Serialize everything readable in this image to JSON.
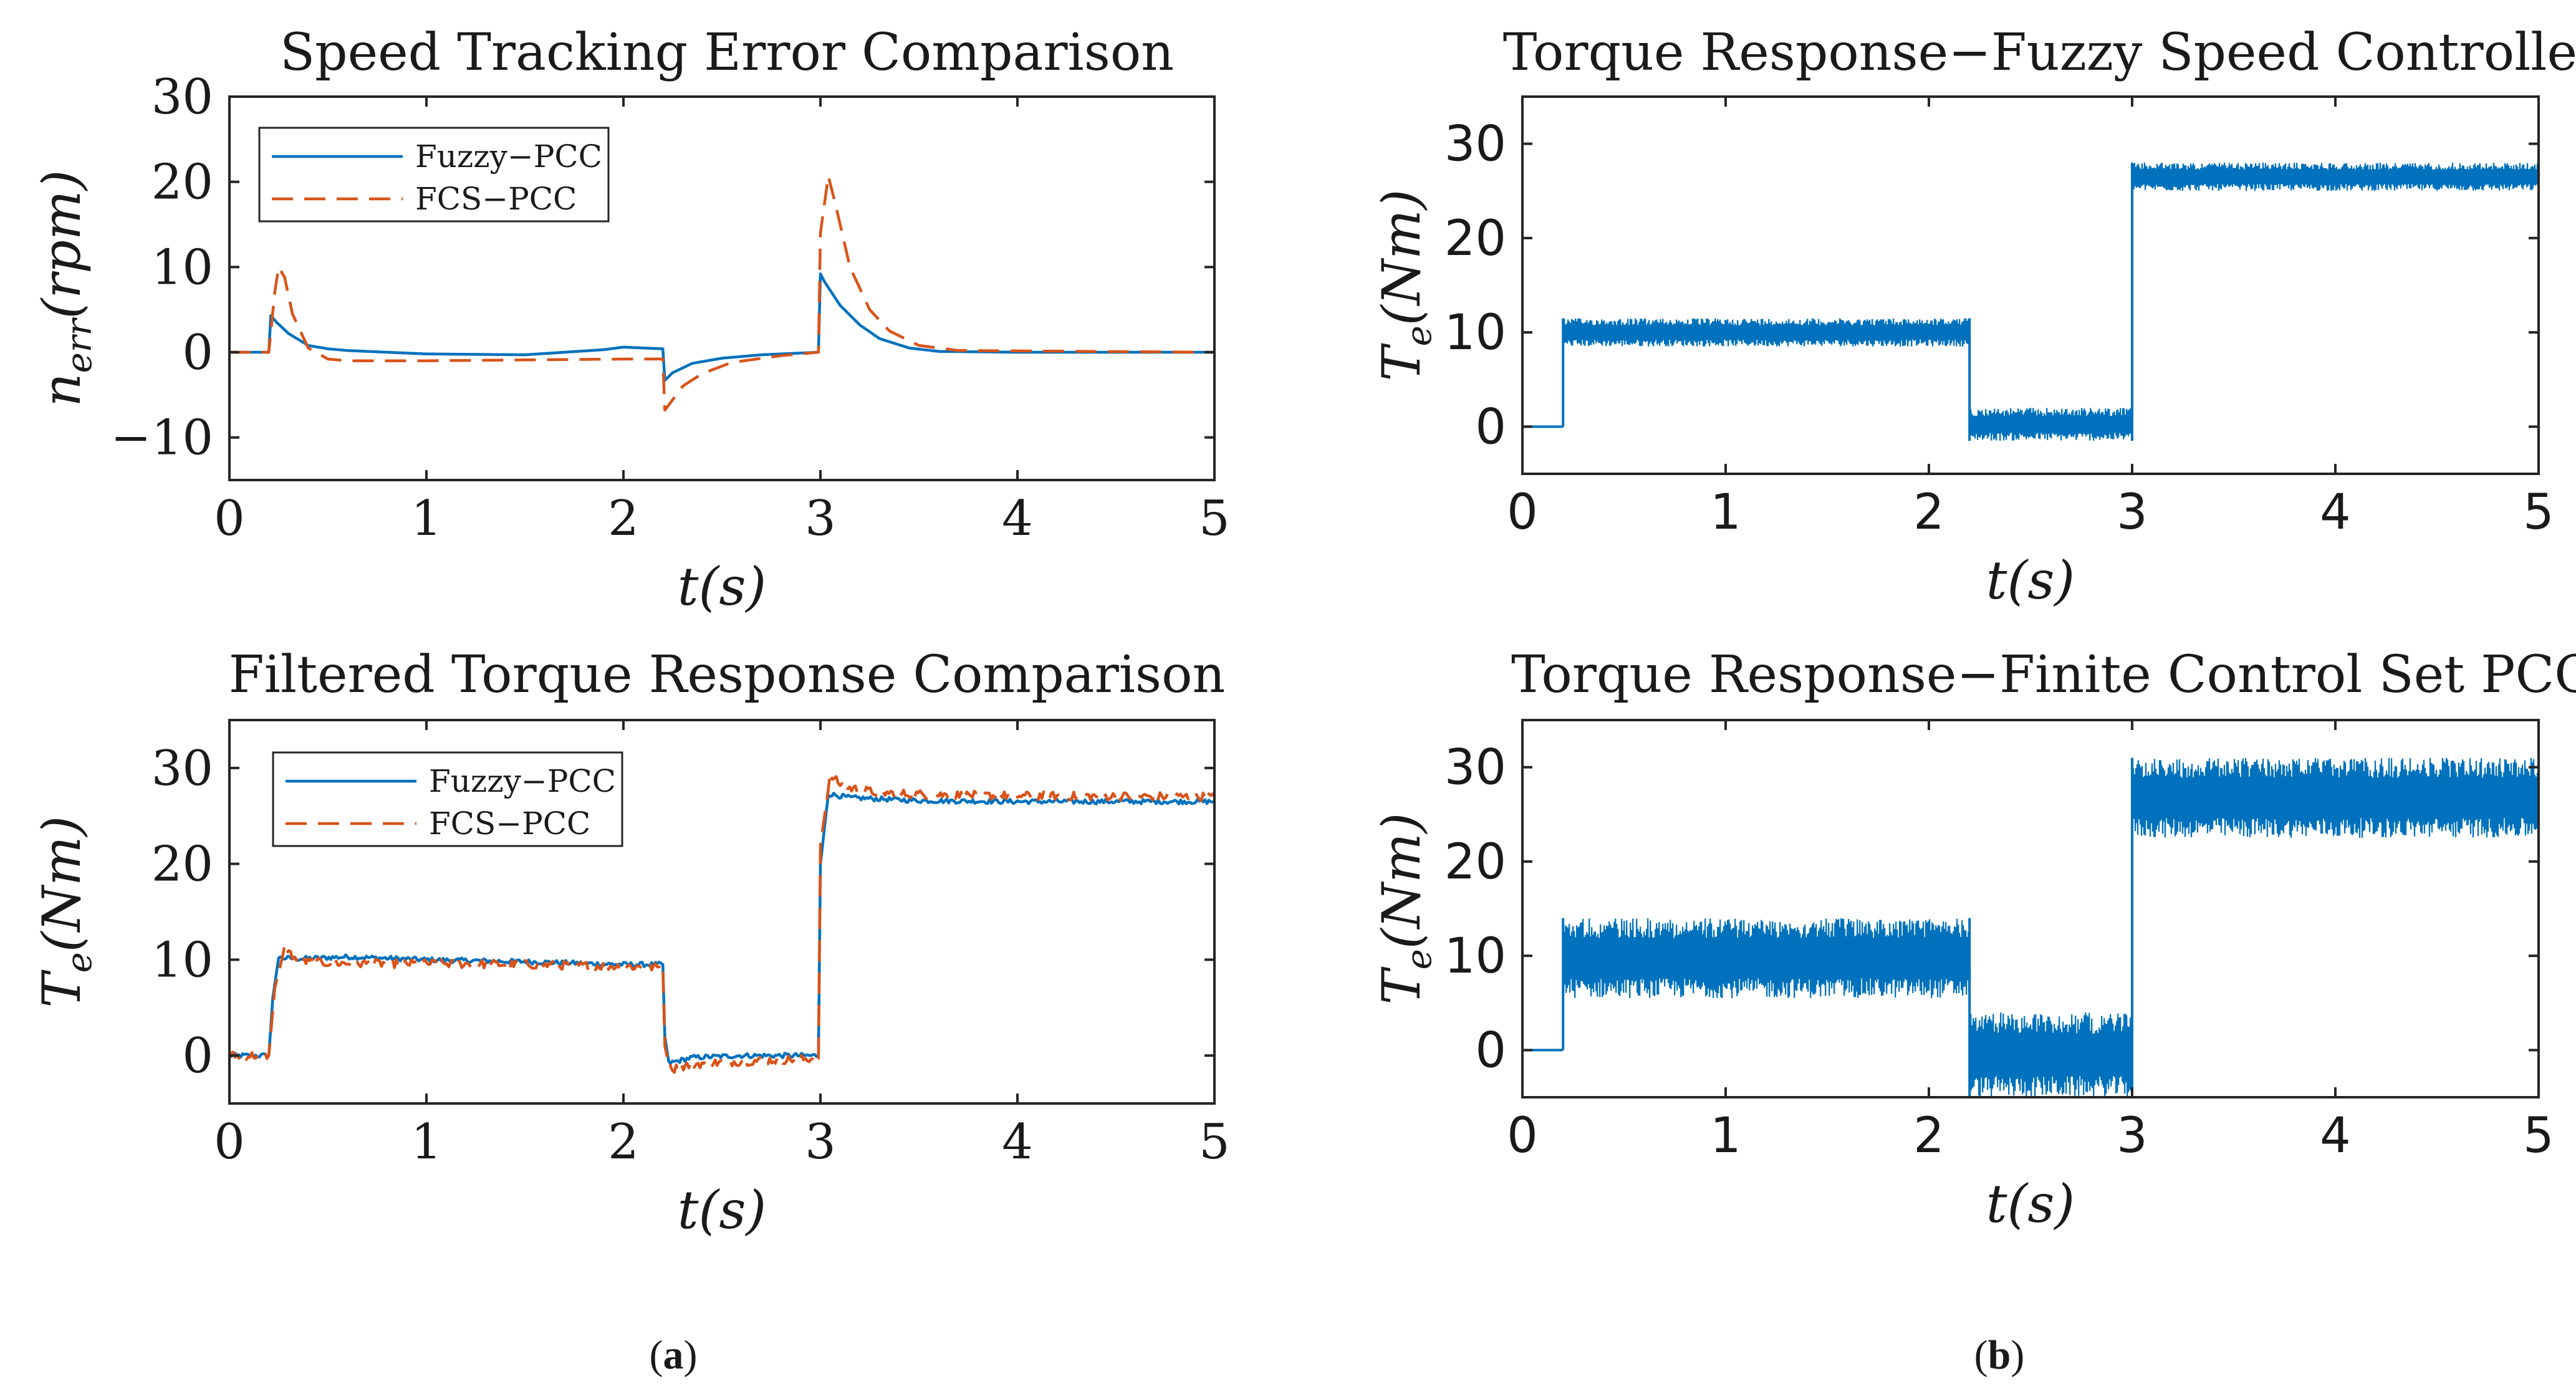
{
  "figure": {
    "subfigure_labels": {
      "a_open": "(",
      "a": "a",
      "a_close": ")",
      "b_open": "(",
      "b": "b",
      "b_close": ")"
    }
  },
  "colors": {
    "fuzzy": "#0072BD",
    "fcs": "#D95319"
  },
  "chart_data": [
    {
      "id": "speed_error",
      "type": "line",
      "title": "Speed Tracking Error Comparison",
      "xlabel": "t(s)",
      "ylabel": "n_err(rpm)",
      "ylabel_base": "n",
      "ylabel_sub": "err",
      "ylabel_rest": "(rpm)",
      "xlim": [
        0,
        5
      ],
      "ylim": [
        -15,
        30
      ],
      "xticks": [
        0,
        1,
        2,
        3,
        4,
        5
      ],
      "yticks": [
        -10,
        0,
        10,
        20,
        30
      ],
      "legend": [
        "Fuzzy−PCC",
        "FCS−PCC"
      ],
      "legend_position": "top-left",
      "series": [
        {
          "name": "Fuzzy−PCC",
          "style": "solid",
          "x": [
            0,
            0.2,
            0.21,
            0.24,
            0.3,
            0.4,
            0.5,
            0.6,
            1.0,
            1.5,
            1.9,
            2.0,
            2.2,
            2.21,
            2.25,
            2.35,
            2.5,
            2.7,
            2.99,
            3.0,
            3.02,
            3.1,
            3.2,
            3.3,
            3.45,
            3.6,
            4.0,
            5.0
          ],
          "y": [
            0,
            0,
            4.3,
            3.5,
            2.2,
            0.8,
            0.4,
            0.2,
            -0.2,
            -0.3,
            0.3,
            0.6,
            0.4,
            -3.3,
            -2.4,
            -1.3,
            -0.7,
            -0.3,
            0,
            9.2,
            8.3,
            5.5,
            3.2,
            1.6,
            0.5,
            0.1,
            0,
            0
          ]
        },
        {
          "name": "FCS−PCC",
          "style": "dashed",
          "x": [
            0,
            0.2,
            0.23,
            0.25,
            0.28,
            0.32,
            0.4,
            0.5,
            0.6,
            1.0,
            2.0,
            2.2,
            2.21,
            2.23,
            2.3,
            2.4,
            2.55,
            2.8,
            2.99,
            3.0,
            3.04,
            3.08,
            3.15,
            3.25,
            3.35,
            3.5,
            3.7,
            5.0
          ],
          "y": [
            0,
            0,
            7,
            10,
            8.8,
            4.5,
            0.5,
            -0.8,
            -1.0,
            -1.0,
            -0.8,
            -0.8,
            -6.8,
            -6.2,
            -4.0,
            -2.5,
            -1.2,
            -0.4,
            0,
            14,
            20.7,
            17,
            10,
            5,
            2.5,
            0.8,
            0.2,
            0
          ]
        }
      ]
    },
    {
      "id": "filtered_torque",
      "type": "line",
      "title": "Filtered Torque Response Comparison",
      "xlabel": "t(s)",
      "ylabel": "T_e(Nm)",
      "ylabel_base": "T",
      "ylabel_sub": "e",
      "ylabel_rest": "(Nm)",
      "xlim": [
        0,
        5
      ],
      "ylim": [
        -5,
        35
      ],
      "xticks": [
        0,
        1,
        2,
        3,
        4,
        5
      ],
      "yticks": [
        0,
        10,
        20,
        30
      ],
      "legend": [
        "Fuzzy−PCC",
        "FCS−PCC"
      ],
      "legend_position": "top-left",
      "series": [
        {
          "name": "Fuzzy−PCC",
          "style": "solid",
          "x": [
            0,
            0.2,
            0.22,
            0.25,
            0.35,
            0.6,
            1.0,
            1.5,
            2.0,
            2.2,
            2.21,
            2.23,
            2.35,
            2.6,
            2.99,
            3.0,
            3.04,
            3.15,
            3.5,
            4.0,
            5.0
          ],
          "y": [
            0,
            0,
            6,
            10.2,
            10.1,
            10.3,
            10.0,
            9.8,
            9.5,
            9.5,
            2,
            -0.8,
            -0.2,
            0,
            0,
            20,
            27.3,
            26.9,
            26.6,
            26.5,
            26.5
          ],
          "jitter": 0.25
        },
        {
          "name": "FCS−PCC",
          "style": "dashed",
          "x": [
            0,
            0.2,
            0.23,
            0.28,
            0.35,
            0.6,
            1.0,
            1.5,
            2.0,
            2.2,
            2.21,
            2.25,
            2.35,
            2.6,
            2.99,
            3.0,
            3.05,
            3.12,
            3.3,
            3.6,
            4.0,
            5.0
          ],
          "y": [
            0,
            0,
            7,
            11.2,
            9.8,
            9.6,
            9.6,
            9.5,
            9.3,
            9.2,
            1,
            -1.4,
            -0.9,
            -0.6,
            -0.3,
            22,
            29.2,
            28.0,
            27.4,
            27.2,
            27.1,
            27.0
          ],
          "jitter": 0.45
        }
      ]
    },
    {
      "id": "torque_fuzzy",
      "type": "line",
      "title": "Torque Response−Fuzzy Speed Controller",
      "xlabel": "t(s)",
      "ylabel": "T_e(Nm)",
      "ylabel_base": "T",
      "ylabel_sub": "e",
      "ylabel_rest": "(Nm)",
      "xlim": [
        0,
        5
      ],
      "ylim": [
        -5,
        35
      ],
      "xticks": [
        0,
        1,
        2,
        3,
        4,
        5
      ],
      "yticks": [
        0,
        10,
        20,
        30
      ],
      "series": [
        {
          "name": "Te",
          "style": "band",
          "segments": [
            {
              "x0": 0,
              "x1": 0.2,
              "lo": 0,
              "hi": 0
            },
            {
              "x0": 0.2,
              "x1": 2.2,
              "lo": 8.5,
              "hi": 11.5
            },
            {
              "x0": 2.2,
              "x1": 3.0,
              "lo": -1.5,
              "hi": 2.0
            },
            {
              "x0": 3.0,
              "x1": 5.0,
              "lo": 25.0,
              "hi": 28.0
            }
          ]
        }
      ]
    },
    {
      "id": "torque_fcs",
      "type": "line",
      "title": "Torque Response−Finite Control Set PCC",
      "xlabel": "t(s)",
      "ylabel": "T_e(Nm)",
      "ylabel_base": "T",
      "ylabel_sub": "e",
      "ylabel_rest": "(Nm)",
      "xlim": [
        0,
        5
      ],
      "ylim": [
        -5,
        35
      ],
      "xticks": [
        0,
        1,
        2,
        3,
        4,
        5
      ],
      "yticks": [
        0,
        10,
        20,
        30
      ],
      "series": [
        {
          "name": "Te",
          "style": "band",
          "segments": [
            {
              "x0": 0,
              "x1": 0.2,
              "lo": 0,
              "hi": 0
            },
            {
              "x0": 0.2,
              "x1": 2.2,
              "lo": 5.5,
              "hi": 14.0
            },
            {
              "x0": 2.2,
              "x1": 3.0,
              "lo": -5.0,
              "hi": 4.0
            },
            {
              "x0": 3.0,
              "x1": 5.0,
              "lo": 22.5,
              "hi": 31.0
            }
          ]
        }
      ]
    }
  ]
}
